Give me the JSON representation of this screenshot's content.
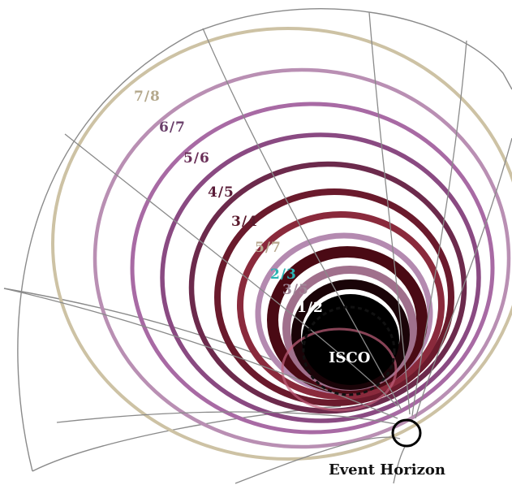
{
  "diagram": {
    "orbit_labels": [
      {
        "id": "r78",
        "text": "7/8",
        "color": "#b4a88c"
      },
      {
        "id": "r67",
        "text": "6/7",
        "color": "#6a3f6a"
      },
      {
        "id": "r56",
        "text": "5/6",
        "color": "#6a2f58"
      },
      {
        "id": "r45",
        "text": "4/5",
        "color": "#5a1c38"
      },
      {
        "id": "r34",
        "text": "3/4",
        "color": "#5a1a2c"
      },
      {
        "id": "r57",
        "text": "5/7",
        "color": "#b8a890"
      },
      {
        "id": "r23",
        "text": "2/3",
        "color": "#2ab3b3"
      },
      {
        "id": "r35",
        "text": "3/5",
        "color": "#a08898"
      },
      {
        "id": "r12",
        "text": "1/2",
        "color": "#ffffff"
      }
    ],
    "isco_label": "ISCO",
    "event_horizon_label": "Event Horizon",
    "colors": {
      "grid": "#8a8a8a",
      "ring_outer": "#cdc2a4",
      "ring_mid": "#a86aa4",
      "ring_inner": "#5a1220",
      "core": "#000000"
    }
  }
}
